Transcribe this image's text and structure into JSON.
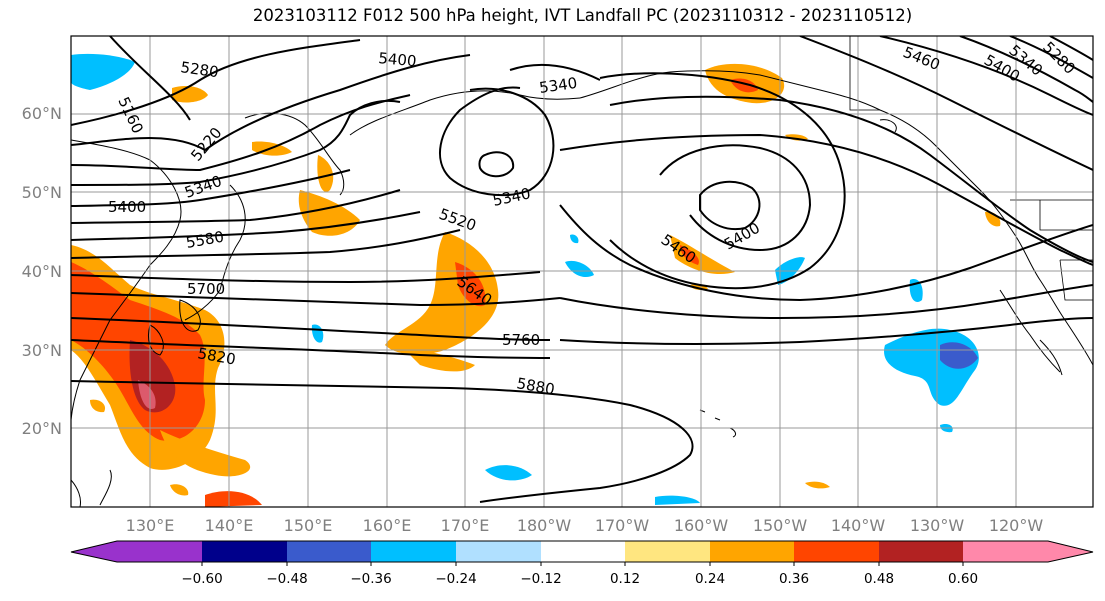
{
  "title": "2023103112 F012 500 hPa height, IVT Landfall PC (2023110312 - 2023110512)",
  "latitude_labels": [
    "60°N",
    "50°N",
    "40°N",
    "30°N",
    "20°N"
  ],
  "longitude_labels": [
    "130°E",
    "140°E",
    "150°E",
    "160°E",
    "170°E",
    "180°W",
    "170°W",
    "160°W",
    "150°W",
    "140°W",
    "130°W",
    "120°W"
  ],
  "contour_labels": [
    "5280",
    "5160",
    "5220",
    "5340",
    "5400",
    "5580",
    "5700",
    "5820",
    "5400",
    "5340",
    "5340",
    "5520",
    "5640",
    "5760",
    "5880",
    "5460",
    "5400",
    "5460",
    "5400",
    "5340",
    "5280"
  ],
  "colorbar": {
    "tick_labels": [
      "−0.60",
      "−0.48",
      "−0.36",
      "−0.24",
      "−0.12",
      "0.12",
      "0.24",
      "0.36",
      "0.48",
      "0.60"
    ],
    "colors": [
      "#9932cc",
      "#00008b",
      "#3a5bcc",
      "#00bfff",
      "#b0e0ff",
      "#ffffff",
      "#ffe680",
      "#ffa500",
      "#ff4500",
      "#b22222",
      "#ff88aa"
    ]
  }
}
